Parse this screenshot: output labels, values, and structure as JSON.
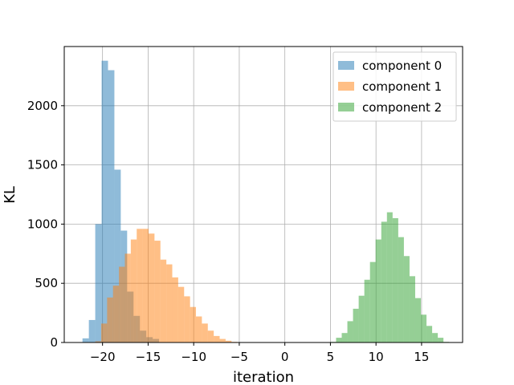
{
  "chart_data": {
    "type": "bar",
    "title": "",
    "xlabel": "iteration",
    "ylabel": "KL",
    "xlim": [
      -24.2,
      19.5
    ],
    "ylim": [
      0,
      2500
    ],
    "xticks": [
      -20,
      -15,
      -10,
      -5,
      0,
      5,
      10,
      15
    ],
    "yticks": [
      0,
      500,
      1000,
      1500,
      2000
    ],
    "xtick_labels": [
      "−20",
      "−15",
      "−10",
      "−5",
      "0",
      "5",
      "10",
      "15"
    ],
    "ytick_labels": [
      "0",
      "500",
      "1000",
      "1500",
      "2000"
    ],
    "grid": true,
    "legend_position": "top-right",
    "series": [
      {
        "name": "component 0",
        "color": "#1f77b4",
        "bin_width": 0.7,
        "bins": [
          {
            "x": -22.2,
            "y": 35
          },
          {
            "x": -21.5,
            "y": 190
          },
          {
            "x": -20.8,
            "y": 1000
          },
          {
            "x": -20.1,
            "y": 2380
          },
          {
            "x": -19.4,
            "y": 2300
          },
          {
            "x": -18.7,
            "y": 1460
          },
          {
            "x": -18.0,
            "y": 945
          },
          {
            "x": -17.3,
            "y": 430
          },
          {
            "x": -16.6,
            "y": 225
          },
          {
            "x": -15.9,
            "y": 100
          },
          {
            "x": -15.2,
            "y": 45
          },
          {
            "x": -14.5,
            "y": 30
          }
        ]
      },
      {
        "name": "component 1",
        "color": "#ff7f0e",
        "bin_width": 0.65,
        "bins": [
          {
            "x": -20.8,
            "y": 10
          },
          {
            "x": -20.15,
            "y": 160
          },
          {
            "x": -19.5,
            "y": 380
          },
          {
            "x": -18.85,
            "y": 480
          },
          {
            "x": -18.2,
            "y": 640
          },
          {
            "x": -17.55,
            "y": 750
          },
          {
            "x": -16.9,
            "y": 870
          },
          {
            "x": -16.25,
            "y": 960
          },
          {
            "x": -15.6,
            "y": 960
          },
          {
            "x": -14.95,
            "y": 920
          },
          {
            "x": -14.3,
            "y": 860
          },
          {
            "x": -13.65,
            "y": 700
          },
          {
            "x": -13.0,
            "y": 660
          },
          {
            "x": -12.35,
            "y": 550
          },
          {
            "x": -11.7,
            "y": 470
          },
          {
            "x": -11.05,
            "y": 390
          },
          {
            "x": -10.4,
            "y": 300
          },
          {
            "x": -9.75,
            "y": 220
          },
          {
            "x": -9.1,
            "y": 160
          },
          {
            "x": -8.45,
            "y": 100
          },
          {
            "x": -7.8,
            "y": 55
          },
          {
            "x": -7.15,
            "y": 30
          },
          {
            "x": -6.5,
            "y": 15
          },
          {
            "x": -5.85,
            "y": 5
          }
        ]
      },
      {
        "name": "component 2",
        "color": "#2ca02c",
        "bin_width": 0.62,
        "bins": [
          {
            "x": 5.0,
            "y": 5
          },
          {
            "x": 5.62,
            "y": 40
          },
          {
            "x": 6.24,
            "y": 80
          },
          {
            "x": 6.86,
            "y": 180
          },
          {
            "x": 7.48,
            "y": 285
          },
          {
            "x": 8.1,
            "y": 395
          },
          {
            "x": 8.72,
            "y": 530
          },
          {
            "x": 9.34,
            "y": 680
          },
          {
            "x": 9.96,
            "y": 870
          },
          {
            "x": 10.58,
            "y": 1020
          },
          {
            "x": 11.2,
            "y": 1100
          },
          {
            "x": 11.82,
            "y": 1050
          },
          {
            "x": 12.44,
            "y": 890
          },
          {
            "x": 13.06,
            "y": 730
          },
          {
            "x": 13.68,
            "y": 560
          },
          {
            "x": 14.3,
            "y": 375
          },
          {
            "x": 14.92,
            "y": 235
          },
          {
            "x": 15.54,
            "y": 140
          },
          {
            "x": 16.16,
            "y": 80
          },
          {
            "x": 16.78,
            "y": 40
          },
          {
            "x": 17.4,
            "y": 5
          }
        ]
      }
    ]
  }
}
